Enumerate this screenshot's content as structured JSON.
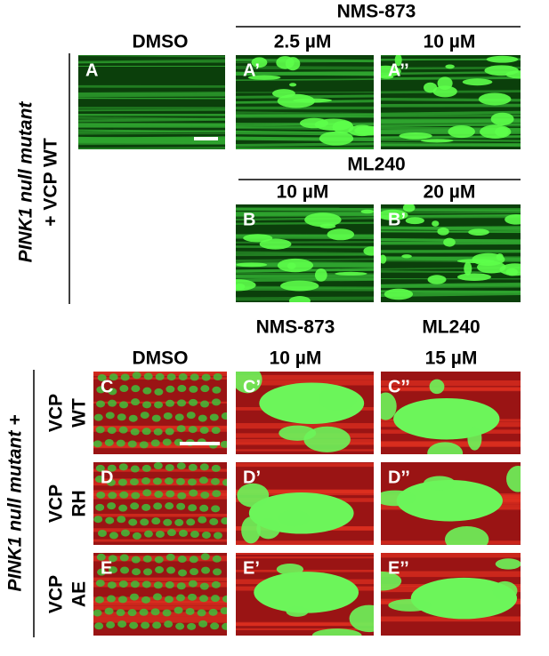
{
  "top": {
    "side_label": "PINK1 null mutant",
    "side_label_2": "+ VCP WT",
    "dmso": "DMSO",
    "nms": "NMS-873",
    "nms_doses": [
      "2.5 µM",
      "10 µM"
    ],
    "ml": "ML240",
    "ml_doses": [
      "10 µM",
      "20 µM"
    ],
    "panels": [
      "A",
      "A’",
      "A’’",
      "B",
      "B’"
    ]
  },
  "bottom": {
    "side_label": "PINK1 null mutant +",
    "columns": [
      {
        "name": "DMSO"
      },
      {
        "name": "NMS-873",
        "dose": "10 µM"
      },
      {
        "name": "ML240",
        "dose": "15 µM"
      }
    ],
    "rows": [
      {
        "label": [
          "VCP",
          "WT"
        ],
        "panels": [
          "C",
          "C’",
          "C’’"
        ]
      },
      {
        "label": [
          "VCP",
          "RH"
        ],
        "panels": [
          "D",
          "D’",
          "D’’"
        ]
      },
      {
        "label": [
          "VCP",
          "AE"
        ],
        "panels": [
          "E",
          "E’",
          "E’’"
        ]
      }
    ]
  }
}
